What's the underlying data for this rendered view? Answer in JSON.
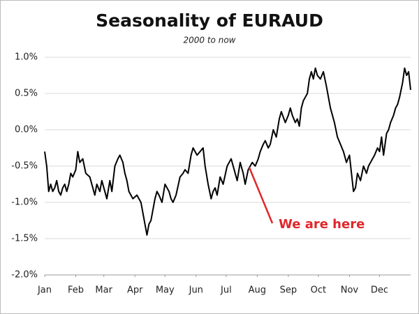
{
  "chart_data": {
    "type": "line",
    "title": "Seasonality of EURAUD",
    "subtitle": "2000 to now",
    "annotation": "We are here",
    "x": [
      0,
      2,
      4,
      6,
      8,
      10,
      12,
      14,
      16,
      18,
      20,
      22,
      24,
      26,
      28,
      31,
      33,
      35,
      38,
      41,
      45,
      48,
      50,
      52,
      55,
      57,
      59,
      62,
      65,
      67,
      70,
      73,
      75,
      78,
      80,
      82,
      84,
      86,
      88,
      92,
      96,
      98,
      100,
      102,
      104,
      106,
      108,
      110,
      112,
      114,
      117,
      120,
      122,
      124,
      126,
      128,
      131,
      135,
      138,
      140,
      143,
      146,
      148,
      152,
      155,
      158,
      160,
      163,
      166,
      168,
      170,
      172,
      175,
      178,
      182,
      184,
      186,
      189,
      192,
      195,
      198,
      200,
      203,
      207,
      210,
      213,
      215,
      218,
      220,
      223,
      225,
      228,
      231,
      234,
      236,
      240,
      243,
      245,
      247,
      250,
      252,
      254,
      256,
      258,
      260,
      262,
      264,
      266,
      268,
      270,
      272,
      275,
      278,
      281,
      283,
      285,
      287,
      289,
      292,
      295,
      298,
      301,
      304,
      306,
      308,
      310,
      312,
      315,
      318,
      321,
      323,
      325,
      329,
      332,
      334,
      336,
      338,
      341,
      343,
      345,
      348,
      350,
      352,
      354,
      357,
      359,
      361,
      363,
      365
    ],
    "values": [
      -0.3,
      -0.5,
      -0.85,
      -0.75,
      -0.85,
      -0.8,
      -0.7,
      -0.85,
      -0.9,
      -0.8,
      -0.75,
      -0.85,
      -0.75,
      -0.6,
      -0.65,
      -0.55,
      -0.3,
      -0.45,
      -0.4,
      -0.6,
      -0.65,
      -0.8,
      -0.9,
      -0.75,
      -0.85,
      -0.7,
      -0.8,
      -0.95,
      -0.7,
      -0.85,
      -0.5,
      -0.4,
      -0.35,
      -0.45,
      -0.6,
      -0.7,
      -0.85,
      -0.9,
      -0.95,
      -0.9,
      -1.0,
      -1.15,
      -1.3,
      -1.45,
      -1.3,
      -1.25,
      -1.1,
      -0.95,
      -0.85,
      -0.9,
      -1.0,
      -0.75,
      -0.8,
      -0.85,
      -0.95,
      -1.0,
      -0.9,
      -0.65,
      -0.6,
      -0.55,
      -0.6,
      -0.35,
      -0.25,
      -0.35,
      -0.3,
      -0.25,
      -0.5,
      -0.75,
      -0.95,
      -0.85,
      -0.8,
      -0.9,
      -0.65,
      -0.75,
      -0.5,
      -0.45,
      -0.4,
      -0.55,
      -0.7,
      -0.45,
      -0.6,
      -0.75,
      -0.55,
      -0.45,
      -0.5,
      -0.4,
      -0.3,
      -0.2,
      -0.15,
      -0.25,
      -0.2,
      0.0,
      -0.1,
      0.15,
      0.25,
      0.1,
      0.2,
      0.3,
      0.2,
      0.1,
      0.15,
      0.05,
      0.3,
      0.4,
      0.45,
      0.5,
      0.7,
      0.8,
      0.7,
      0.85,
      0.75,
      0.7,
      0.8,
      0.6,
      0.45,
      0.3,
      0.2,
      0.1,
      -0.1,
      -0.2,
      -0.3,
      -0.45,
      -0.35,
      -0.6,
      -0.85,
      -0.8,
      -0.6,
      -0.7,
      -0.5,
      -0.6,
      -0.5,
      -0.45,
      -0.35,
      -0.25,
      -0.3,
      -0.1,
      -0.35,
      -0.05,
      0.0,
      0.1,
      0.2,
      0.3,
      0.35,
      0.45,
      0.65,
      0.85,
      0.75,
      0.8,
      0.55
    ],
    "color": "#000000",
    "xlim": [
      0,
      365
    ],
    "xticks": [
      {
        "value": 0,
        "label": "Jan"
      },
      {
        "value": 31,
        "label": "Feb"
      },
      {
        "value": 59,
        "label": "Mar"
      },
      {
        "value": 90,
        "label": "Apr"
      },
      {
        "value": 120,
        "label": "May"
      },
      {
        "value": 151,
        "label": "Jun"
      },
      {
        "value": 181,
        "label": "Jul"
      },
      {
        "value": 212,
        "label": "Aug"
      },
      {
        "value": 243,
        "label": "Sep"
      },
      {
        "value": 273,
        "label": "Oct"
      },
      {
        "value": 304,
        "label": "Nov"
      },
      {
        "value": 334,
        "label": "Dec"
      }
    ],
    "ylim": [
      -2.0,
      1.0
    ],
    "yticks": [
      {
        "value": -2.0,
        "label": "-2.0%"
      },
      {
        "value": -1.5,
        "label": "-1.5%"
      },
      {
        "value": -1.0,
        "label": "-1.0%"
      },
      {
        "value": -0.5,
        "label": "-0.5%"
      },
      {
        "value": 0.0,
        "label": "0.0%"
      },
      {
        "value": 0.5,
        "label": "0.5%"
      },
      {
        "value": 1.0,
        "label": "1.0%"
      }
    ],
    "grid": true
  }
}
